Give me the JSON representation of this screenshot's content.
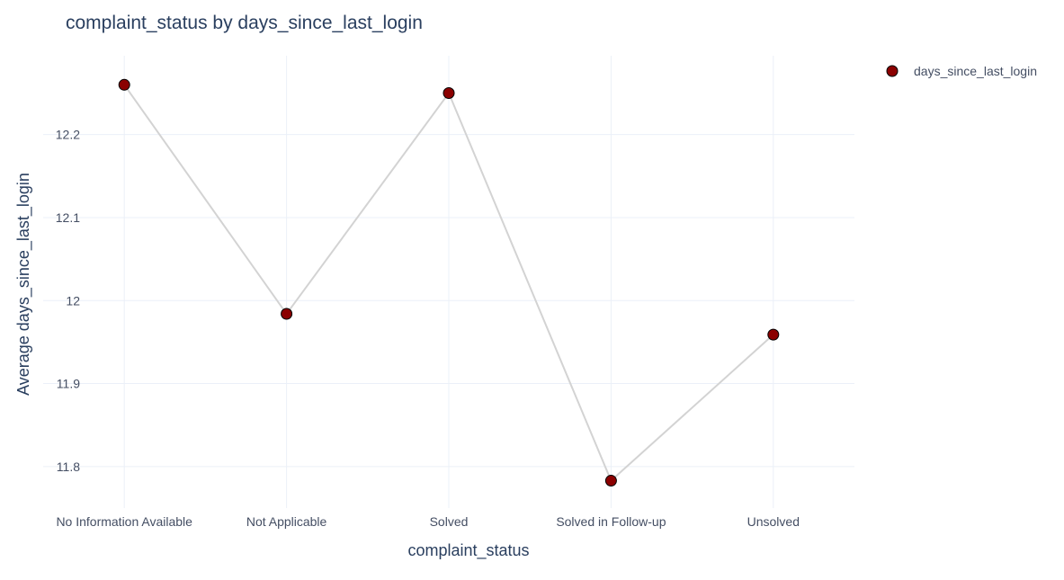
{
  "chart_data": {
    "type": "line",
    "title": "complaint_status by days_since_last_login",
    "xlabel": "complaint_status",
    "ylabel": "Average days_since_last_login",
    "categories": [
      "No Information Available",
      "Not Applicable",
      "Solved",
      "Solved in Follow-up",
      "Unsolved"
    ],
    "series": [
      {
        "name": "days_since_last_login",
        "values": [
          12.26,
          11.984,
          12.25,
          11.783,
          11.959
        ],
        "marker_color": "#8b0000",
        "line_color": "#d3d3d3"
      }
    ],
    "ylim": [
      11.75,
      12.295
    ],
    "yticks": [
      11.8,
      11.9,
      12,
      12.1,
      12.2
    ],
    "ytick_labels": [
      "11.8",
      "11.9",
      "12",
      "12.1",
      "12.2"
    ],
    "grid": true,
    "legend_position": "top-right"
  }
}
